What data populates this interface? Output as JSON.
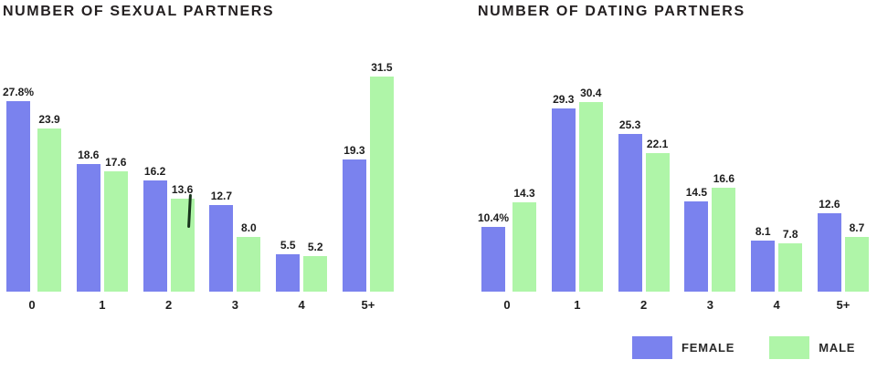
{
  "chart_data": [
    {
      "type": "bar",
      "title": "NUMBER OF SEXUAL PARTNERS",
      "categories": [
        "0",
        "1",
        "2",
        "3",
        "4",
        "5+"
      ],
      "series": [
        {
          "name": "FEMALE",
          "color": "#7A82EE",
          "values": [
            27.8,
            18.6,
            16.2,
            12.7,
            5.5,
            19.3
          ],
          "value_labels": [
            "27.8%",
            "18.6",
            "16.2",
            "12.7",
            "5.5",
            "19.3"
          ]
        },
        {
          "name": "MALE",
          "color": "#AFF5A8",
          "values": [
            23.9,
            17.6,
            13.6,
            8.0,
            5.2,
            31.5
          ],
          "value_labels": [
            "23.9",
            "17.6",
            "13.6",
            "8.0",
            "5.2",
            "31.5"
          ]
        }
      ],
      "xlabel": "",
      "ylabel": "",
      "unit": "percent",
      "ylim": [
        0,
        32
      ],
      "grid": false,
      "legend_position": "bottom-right"
    },
    {
      "type": "bar",
      "title": "NUMBER OF DATING PARTNERS",
      "categories": [
        "0",
        "1",
        "2",
        "3",
        "4",
        "5+"
      ],
      "series": [
        {
          "name": "FEMALE",
          "color": "#7A82EE",
          "values": [
            10.4,
            29.3,
            25.3,
            14.5,
            8.1,
            12.6
          ],
          "value_labels": [
            "10.4%",
            "29.3",
            "25.3",
            "14.5",
            "8.1",
            "12.6"
          ]
        },
        {
          "name": "MALE",
          "color": "#AFF5A8",
          "values": [
            14.3,
            30.4,
            22.1,
            16.6,
            7.8,
            8.7
          ],
          "value_labels": [
            "14.3",
            "30.4",
            "22.1",
            "16.6",
            "7.8",
            "8.7"
          ]
        }
      ],
      "xlabel": "",
      "ylabel": "",
      "unit": "percent",
      "ylim": [
        0,
        35
      ],
      "grid": false,
      "legend_position": "bottom-right"
    }
  ],
  "legend": {
    "items": [
      {
        "label": "FEMALE",
        "color": "#7A82EE"
      },
      {
        "label": "MALE",
        "color": "#AFF5A8"
      }
    ]
  },
  "colors": {
    "female": "#7A82EE",
    "male": "#AFF5A8",
    "text": "#231f20",
    "background": "#ffffff"
  }
}
